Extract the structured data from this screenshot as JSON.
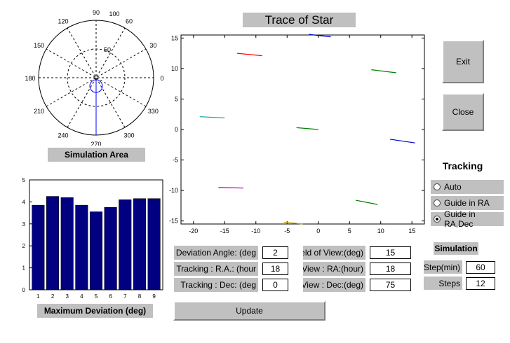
{
  "title": "Trace of Star",
  "polar": {
    "angle_labels": [
      "90",
      "100",
      "120",
      "60",
      "150",
      "30",
      "180",
      "0",
      "210",
      "330",
      "240",
      "300",
      "270"
    ],
    "radius_labels": [
      "50"
    ],
    "caption": "Simulation Area"
  },
  "bar_chart": {
    "caption": "Maximum Deviation (deg)"
  },
  "trace": {
    "xticks": [
      "-20",
      "-15",
      "-10",
      "-5",
      "0",
      "5",
      "10",
      "15"
    ],
    "yticks": [
      "15",
      "10",
      "5",
      "0",
      "-5",
      "-10",
      "-15"
    ]
  },
  "chart_data": [
    {
      "type": "bar",
      "categories": [
        "1",
        "2",
        "3",
        "4",
        "5",
        "6",
        "7",
        "8",
        "9"
      ],
      "values": [
        3.85,
        4.25,
        4.2,
        3.85,
        3.55,
        3.75,
        4.1,
        4.15,
        4.15
      ],
      "ylim": [
        0,
        5
      ],
      "yticks": [
        "0",
        "1",
        "2",
        "3",
        "4",
        "5"
      ],
      "color": "#000080"
    },
    {
      "type": "line",
      "xlim": [
        -22,
        17
      ],
      "ylim": [
        -15.5,
        15.5
      ],
      "series": [
        {
          "color": "#ff0000",
          "x": [
            -13,
            -9
          ],
          "y": [
            12.5,
            12.1
          ]
        },
        {
          "color": "#0000c0",
          "x": [
            -1.5,
            2
          ],
          "y": [
            15.6,
            15.2
          ]
        },
        {
          "color": "#008000",
          "x": [
            8.5,
            12.5
          ],
          "y": [
            9.8,
            9.3
          ]
        },
        {
          "color": "#00a0a0",
          "x": [
            -19,
            -15
          ],
          "y": [
            2.1,
            1.9
          ]
        },
        {
          "color": "#008000",
          "x": [
            -3.5,
            0
          ],
          "y": [
            0.3,
            0
          ]
        },
        {
          "color": "#0000c0",
          "x": [
            11.5,
            15.5
          ],
          "y": [
            -1.6,
            -2.2
          ]
        },
        {
          "color": "#c000c0",
          "x": [
            -16,
            -12
          ],
          "y": [
            -9.5,
            -9.6
          ]
        },
        {
          "color": "#008000",
          "x": [
            6,
            9.5
          ],
          "y": [
            -11.6,
            -12.3
          ]
        },
        {
          "color": "#c0a000",
          "x": [
            -5.5,
            -2.5
          ],
          "y": [
            -15.2,
            -15.5
          ]
        }
      ]
    }
  ],
  "params": {
    "deviation_angle": {
      "label": "Deviation Angle: (deg",
      "value": "2"
    },
    "tracking_ra": {
      "label": "Tracking : R.A.: (hour",
      "value": "18"
    },
    "tracking_dec": {
      "label": "Tracking : Dec: (deg",
      "value": "0"
    },
    "fov": {
      "label": "Field of View:(deg)",
      "value": "15"
    },
    "view_ra": {
      "label": "View : RA:(hour)",
      "value": "18"
    },
    "view_dec": {
      "label": "View : Dec:(deg)",
      "value": "75"
    }
  },
  "buttons": {
    "exit": "Exit",
    "close": "Close",
    "update": "Update"
  },
  "tracking": {
    "heading": "Tracking",
    "options": [
      "Auto",
      "Guide in RA",
      "Guide in RA,Dec"
    ],
    "selected_index": 2
  },
  "simulation": {
    "heading": "Simulation",
    "step_label": "Step(min)",
    "step_value": "60",
    "steps_label": "Steps",
    "steps_value": "12"
  }
}
